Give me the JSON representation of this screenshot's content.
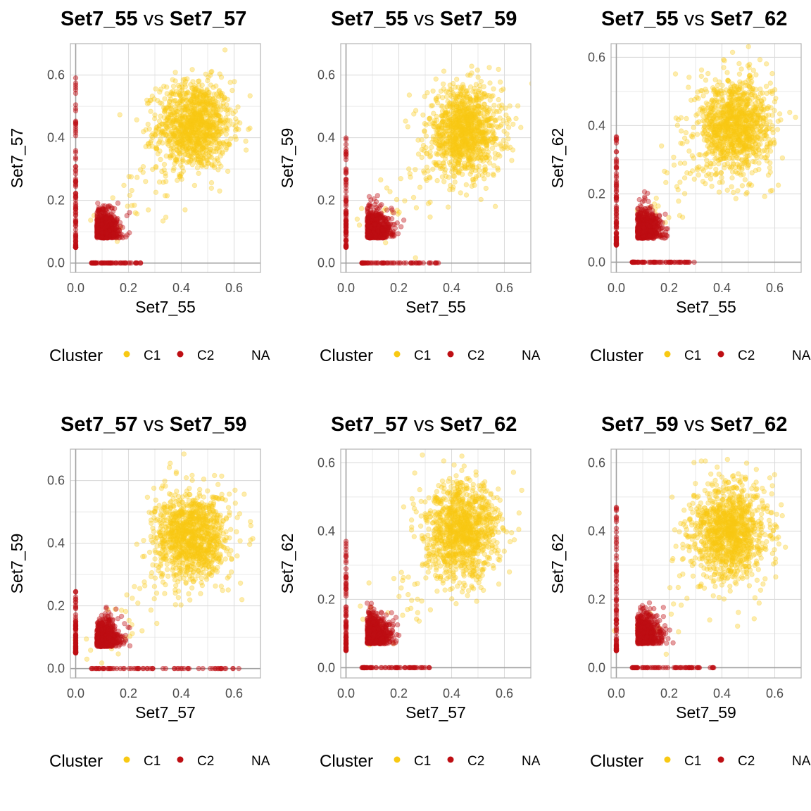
{
  "colors": {
    "cluster_c1": "#F8C913",
    "cluster_c2": "#BE0E13",
    "grid": "#DCDCDC",
    "panel_border": "#B3B3B3",
    "zero_line": "#A0A0A0",
    "text": "#000000",
    "tick_text": "#4D4D4D"
  },
  "legend": {
    "title": "Cluster",
    "items": [
      "C1",
      "C2",
      "NA"
    ]
  },
  "chart_data": [
    {
      "type": "scatter",
      "title_left": "Set7_55",
      "title_mid": " vs ",
      "title_right": "Set7_57",
      "xlabel": "Set7_55",
      "ylabel": "Set7_57",
      "xlim": [
        -0.02,
        0.7
      ],
      "ylim": [
        -0.03,
        0.7
      ],
      "xticks": [
        "0.0",
        "0.2",
        "0.4",
        "0.6"
      ],
      "yticks": [
        "0.0",
        "0.2",
        "0.4",
        "0.6"
      ],
      "grid": true,
      "legend_position": "bottom",
      "series": [
        {
          "name": "C1",
          "cloud_center": [
            0.45,
            0.44
          ],
          "cloud_spread": [
            0.07,
            0.07
          ],
          "outlier_range": [
            0.1,
            0.5
          ]
        },
        {
          "name": "C2",
          "cloud_center": [
            0.1,
            0.11
          ],
          "cloud_spread": [
            0.035,
            0.035
          ],
          "axis_y_range": [
            0.05,
            0.6
          ],
          "axis_x_range": [
            0.06,
            0.25
          ]
        }
      ]
    },
    {
      "type": "scatter",
      "title_left": "Set7_55",
      "title_mid": " vs ",
      "title_right": "Set7_59",
      "xlabel": "Set7_55",
      "ylabel": "Set7_59",
      "xlim": [
        -0.02,
        0.7
      ],
      "ylim": [
        -0.03,
        0.7
      ],
      "xticks": [
        "0.0",
        "0.2",
        "0.4",
        "0.6"
      ],
      "yticks": [
        "0.0",
        "0.2",
        "0.4",
        "0.6"
      ],
      "grid": true,
      "legend_position": "bottom",
      "series": [
        {
          "name": "C1",
          "cloud_center": [
            0.45,
            0.42
          ],
          "cloud_spread": [
            0.07,
            0.07
          ],
          "outlier_range": [
            0.1,
            0.5
          ]
        },
        {
          "name": "C2",
          "cloud_center": [
            0.1,
            0.11
          ],
          "cloud_spread": [
            0.035,
            0.035
          ],
          "axis_y_range": [
            0.05,
            0.4
          ],
          "axis_x_range": [
            0.06,
            0.35
          ]
        }
      ]
    },
    {
      "type": "scatter",
      "title_left": "Set7_55",
      "title_mid": " vs ",
      "title_right": "Set7_62",
      "xlabel": "Set7_55",
      "ylabel": "Set7_62",
      "xlim": [
        -0.02,
        0.7
      ],
      "ylim": [
        -0.03,
        0.64
      ],
      "xticks": [
        "0.0",
        "0.2",
        "0.4",
        "0.6"
      ],
      "yticks": [
        "0.0",
        "0.2",
        "0.4",
        "0.6"
      ],
      "grid": true,
      "legend_position": "bottom",
      "series": [
        {
          "name": "C1",
          "cloud_center": [
            0.45,
            0.4
          ],
          "cloud_spread": [
            0.07,
            0.07
          ],
          "outlier_range": [
            0.1,
            0.5
          ]
        },
        {
          "name": "C2",
          "cloud_center": [
            0.1,
            0.1
          ],
          "cloud_spread": [
            0.035,
            0.035
          ],
          "axis_y_range": [
            0.05,
            0.37
          ],
          "axis_x_range": [
            0.06,
            0.3
          ]
        }
      ]
    },
    {
      "type": "scatter",
      "title_left": "Set7_57",
      "title_mid": " vs ",
      "title_right": "Set7_59",
      "xlabel": "Set7_57",
      "ylabel": "Set7_59",
      "xlim": [
        -0.02,
        0.7
      ],
      "ylim": [
        -0.03,
        0.7
      ],
      "xticks": [
        "0.0",
        "0.2",
        "0.4",
        "0.6"
      ],
      "yticks": [
        "0.0",
        "0.2",
        "0.4",
        "0.6"
      ],
      "grid": true,
      "legend_position": "bottom",
      "series": [
        {
          "name": "C1",
          "cloud_center": [
            0.44,
            0.42
          ],
          "cloud_spread": [
            0.07,
            0.07
          ],
          "outlier_range": [
            0.1,
            0.5
          ]
        },
        {
          "name": "C2",
          "cloud_center": [
            0.1,
            0.1
          ],
          "cloud_spread": [
            0.035,
            0.035
          ],
          "axis_y_range": [
            0.05,
            0.25
          ],
          "axis_x_range": [
            0.06,
            0.62
          ]
        }
      ]
    },
    {
      "type": "scatter",
      "title_left": "Set7_57",
      "title_mid": " vs ",
      "title_right": "Set7_62",
      "xlabel": "Set7_57",
      "ylabel": "Set7_62",
      "xlim": [
        -0.02,
        0.7
      ],
      "ylim": [
        -0.03,
        0.64
      ],
      "xticks": [
        "0.0",
        "0.2",
        "0.4",
        "0.6"
      ],
      "yticks": [
        "0.0",
        "0.2",
        "0.4",
        "0.6"
      ],
      "grid": true,
      "legend_position": "bottom",
      "series": [
        {
          "name": "C1",
          "cloud_center": [
            0.44,
            0.4
          ],
          "cloud_spread": [
            0.07,
            0.07
          ],
          "outlier_range": [
            0.1,
            0.5
          ]
        },
        {
          "name": "C2",
          "cloud_center": [
            0.1,
            0.1
          ],
          "cloud_spread": [
            0.035,
            0.035
          ],
          "axis_y_range": [
            0.05,
            0.37
          ],
          "axis_x_range": [
            0.06,
            0.32
          ]
        }
      ]
    },
    {
      "type": "scatter",
      "title_left": "Set7_59",
      "title_mid": " vs ",
      "title_right": "Set7_62",
      "xlabel": "Set7_59",
      "ylabel": "Set7_62",
      "xlim": [
        -0.02,
        0.7
      ],
      "ylim": [
        -0.03,
        0.64
      ],
      "xticks": [
        "0.0",
        "0.2",
        "0.4",
        "0.6"
      ],
      "yticks": [
        "0.0",
        "0.2",
        "0.4",
        "0.6"
      ],
      "grid": true,
      "legend_position": "bottom",
      "series": [
        {
          "name": "C1",
          "cloud_center": [
            0.43,
            0.4
          ],
          "cloud_spread": [
            0.07,
            0.07
          ],
          "outlier_range": [
            0.1,
            0.5
          ]
        },
        {
          "name": "C2",
          "cloud_center": [
            0.1,
            0.1
          ],
          "cloud_spread": [
            0.035,
            0.035
          ],
          "axis_y_range": [
            0.05,
            0.47
          ],
          "axis_x_range": [
            0.06,
            0.4
          ]
        }
      ]
    }
  ]
}
